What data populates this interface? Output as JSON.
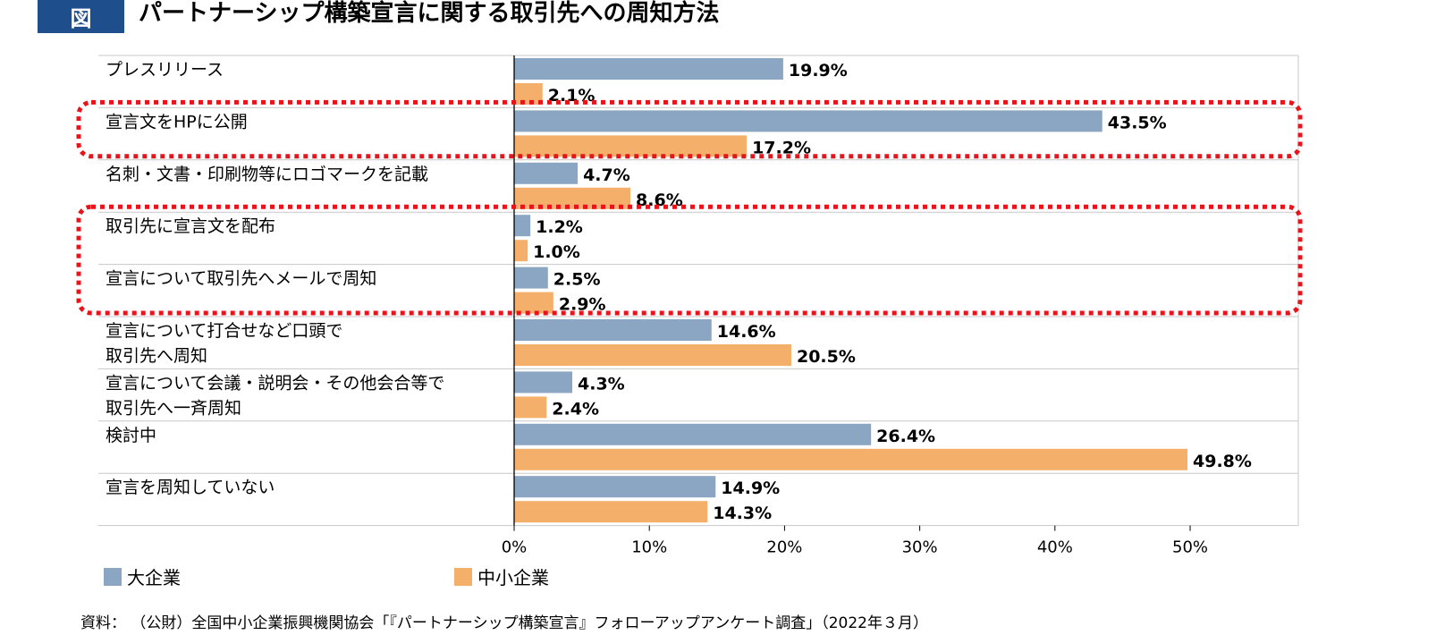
{
  "figure": {
    "badge": "図",
    "title": "パートナーシップ構築宣言に関する取引先への周知方法"
  },
  "source": "資料： （公財）全国中小企業振興機関協会「『パートナーシップ構築宣言』フォローアップアンケート調査」（2022年３月）",
  "colors": {
    "large": "#8aa6c3",
    "sme": "#f4b06b",
    "highlight": "#e8141b"
  },
  "chart_data": {
    "type": "bar",
    "orientation": "horizontal",
    "title": "パートナーシップ構築宣言に関する取引先への周知方法",
    "categories": [
      [
        "プレスリリース"
      ],
      [
        "宣言文をHPに公開"
      ],
      [
        "名刺・文書・印刷物等にロゴマークを記載"
      ],
      [
        "取引先に宣言文を配布"
      ],
      [
        "宣言について取引先へメールで周知"
      ],
      [
        "宣言について打合せなど口頭で",
        "取引先へ周知"
      ],
      [
        "宣言について会議・説明会・その他会合等で",
        "取引先へ一斉周知"
      ],
      [
        "検討中"
      ],
      [
        "宣言を周知していない"
      ]
    ],
    "series": [
      {
        "name": "大企業",
        "values": [
          19.9,
          43.5,
          4.7,
          1.2,
          2.5,
          14.6,
          4.3,
          26.4,
          14.9
        ]
      },
      {
        "name": "中小企業",
        "values": [
          2.1,
          17.2,
          8.6,
          1.0,
          2.9,
          20.5,
          2.4,
          49.8,
          14.3
        ]
      }
    ],
    "value_suffix": "%",
    "xlim": [
      0,
      58
    ],
    "xticks": [
      0,
      10,
      20,
      30,
      40,
      50
    ],
    "xtick_labels": [
      "0%",
      "10%",
      "20%",
      "30%",
      "40%",
      "50%"
    ],
    "grid": false,
    "legend": "bottom-left",
    "highlight_groups": [
      [
        1
      ],
      [
        3,
        4
      ]
    ]
  }
}
